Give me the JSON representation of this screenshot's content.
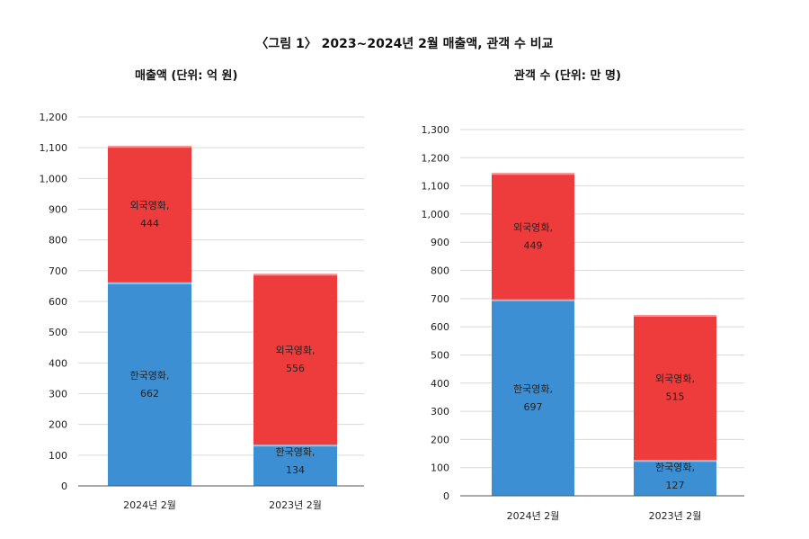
{
  "title": "〈그림 1〉 2023~2024년 2월 매출액, 관객 수 비교",
  "chart_data": [
    {
      "type": "bar",
      "stacked": true,
      "title": "매출액 (단위: 억 원)",
      "categories": [
        "2024년 2월",
        "2023년 2월"
      ],
      "series": [
        {
          "name": "한국영화",
          "values": [
            662,
            134
          ],
          "color": "#3d8fd4"
        },
        {
          "name": "외국영화",
          "values": [
            444,
            556
          ],
          "color": "#ee3c3c"
        }
      ],
      "ylim": [
        0,
        1200
      ],
      "ytick_step": 100,
      "yticks": [
        "0",
        "100",
        "200",
        "300",
        "400",
        "500",
        "600",
        "700",
        "800",
        "900",
        "1,000",
        "1,100",
        "1,200"
      ],
      "grid": true
    },
    {
      "type": "bar",
      "stacked": true,
      "title": "관객 수 (단위: 만 명)",
      "categories": [
        "2024년 2월",
        "2023년 2월"
      ],
      "series": [
        {
          "name": "한국영화",
          "values": [
            697,
            127
          ],
          "color": "#3d8fd4"
        },
        {
          "name": "외국영화",
          "values": [
            449,
            515
          ],
          "color": "#ee3c3c"
        }
      ],
      "ylim": [
        0,
        1300
      ],
      "ytick_step": 100,
      "yticks": [
        "0",
        "100",
        "200",
        "300",
        "400",
        "500",
        "600",
        "700",
        "800",
        "900",
        "1,000",
        "1,100",
        "1,200",
        "1,300"
      ],
      "grid": true
    }
  ]
}
